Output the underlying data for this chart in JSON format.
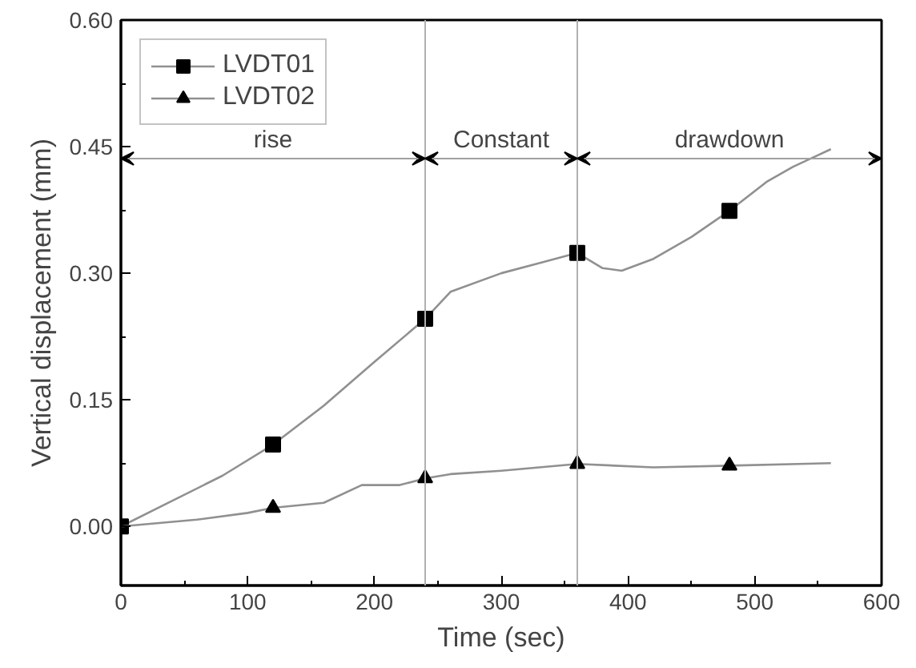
{
  "chart_data": {
    "type": "line",
    "xlabel": "Time (sec)",
    "ylabel": "Vertical displacement (mm)",
    "xlim": [
      0,
      600
    ],
    "xticks": [
      0,
      100,
      200,
      300,
      400,
      500,
      600
    ],
    "ylim": [
      -0.07,
      0.6
    ],
    "yticks": [
      {
        "value": 0,
        "label": "0.00"
      },
      {
        "value": 0.15,
        "label": "0.15"
      },
      {
        "value": 0.3,
        "label": "0.30"
      },
      {
        "value": 0.45,
        "label": "0.45"
      },
      {
        "value": 0.6,
        "label": "0.60"
      }
    ],
    "grid": false,
    "legend": "top left",
    "series": [
      {
        "name": "LVDT01",
        "color": "#909090",
        "marker": "none",
        "x": [
          0,
          40,
          80,
          120,
          160,
          200,
          240,
          260,
          300,
          330,
          360,
          380,
          395,
          420,
          450,
          480,
          510,
          530,
          560
        ],
        "values": [
          0,
          0.03,
          0.06,
          0.097,
          0.143,
          0.195,
          0.246,
          0.278,
          0.3,
          0.312,
          0.324,
          0.306,
          0.303,
          0.317,
          0.343,
          0.374,
          0.409,
          0.426,
          0.447
        ]
      },
      {
        "type": "scatter",
        "color": "#000000",
        "marker": "square",
        "x": [
          0,
          120,
          240,
          360,
          480
        ],
        "values": [
          0,
          0.097,
          0.246,
          0.324,
          0.374
        ]
      },
      {
        "name": "LVDT02",
        "color": "#909090",
        "marker": "none",
        "x": [
          0,
          60,
          100,
          120,
          160,
          190,
          220,
          240,
          260,
          300,
          360,
          420,
          480,
          560
        ],
        "values": [
          0,
          0.008,
          0.016,
          0.022,
          0.028,
          0.049,
          0.049,
          0.057,
          0.062,
          0.066,
          0.074,
          0.07,
          0.072,
          0.075
        ]
      },
      {
        "type": "scatter",
        "color": "#000000",
        "marker": "triangle",
        "x": [
          120,
          240,
          360,
          480
        ],
        "values": [
          0.022,
          0.057,
          0.074,
          0.072
        ]
      }
    ],
    "ref_lines": [
      {
        "axis": "x",
        "value": 240,
        "color": "#b0b0b0"
      },
      {
        "axis": "x",
        "value": 360,
        "color": "#b0b0b0"
      }
    ],
    "annotations": [
      "rise",
      "Constant",
      "drawdown"
    ]
  }
}
